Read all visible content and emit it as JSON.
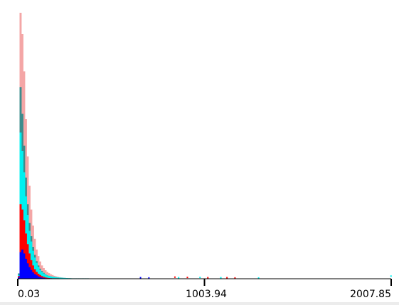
{
  "chart_data": {
    "type": "bar",
    "x_ticks": [
      "0.03",
      "1003.94",
      "2007.85"
    ],
    "xlim": [
      0.03,
      2007.85
    ],
    "ylim": [
      0,
      1
    ],
    "grid": false,
    "bin_count": 210,
    "colors": {
      "pink": "#f4a6a6",
      "teal": "#3d8c8c",
      "cyan": "#00f0f0",
      "red": "#ff0000",
      "blue": "#0000ff",
      "axis": "#000000"
    },
    "series": [
      {
        "color_key": "pink",
        "values": [
          0.02,
          1.0,
          0.92,
          0.78,
          0.6,
          0.46,
          0.35,
          0.26,
          0.2,
          0.15,
          0.11,
          0.085,
          0.065,
          0.05,
          0.04,
          0.032,
          0.026,
          0.021,
          0.017,
          0.014,
          0.011,
          0.009,
          0.0075,
          0.006,
          0.005,
          0.004,
          0.0033,
          0.0027,
          0.0022,
          0.0018,
          0.0015,
          0.0012,
          0.001,
          0.0008,
          0.0006,
          0.0005,
          0.0004,
          0.0003,
          0.0002,
          0.0001
        ]
      },
      {
        "color_key": "teal",
        "values": [
          0.02,
          0.72,
          0.62,
          0.5,
          0.38,
          0.28,
          0.21,
          0.16,
          0.12,
          0.09,
          0.066,
          0.05,
          0.038,
          0.029,
          0.022,
          0.017,
          0.013,
          0.01,
          0.008,
          0.006,
          0.005,
          0.004,
          0.003,
          0.0025,
          0.002,
          0.0016,
          0.0012,
          0.001,
          0.0008,
          0.0006
        ]
      },
      {
        "color_key": "cyan",
        "values": [
          0.015,
          0.55,
          0.48,
          0.4,
          0.31,
          0.24,
          0.18,
          0.14,
          0.105,
          0.08,
          0.06,
          0.045,
          0.034,
          0.026,
          0.02,
          0.016,
          0.013,
          0.011,
          0.009,
          0.008,
          0.007,
          0.006,
          0.005,
          0.0045,
          0.004,
          0.0035,
          0.003,
          0.0026,
          0.0022,
          0.0019,
          0.0016,
          0.0013,
          0.0011,
          0.0009,
          0.0008,
          0.0007,
          0.0006,
          0.0005,
          0.0004,
          0.0003
        ]
      },
      {
        "color_key": "red",
        "values": [
          0.01,
          0.28,
          0.26,
          0.22,
          0.17,
          0.13,
          0.095,
          0.07,
          0.05,
          0.036,
          0.026,
          0.019,
          0.014,
          0.01,
          0.007,
          0.005,
          0.0036,
          0.0026,
          0.0018,
          0.0012,
          0.0008,
          0.0005,
          0.0003
        ]
      },
      {
        "color_key": "blue",
        "values": [
          0.005,
          0.1,
          0.11,
          0.095,
          0.075,
          0.058,
          0.044,
          0.033,
          0.024,
          0.018,
          0.013,
          0.009,
          0.0065,
          0.0045,
          0.003,
          0.002,
          0.0013,
          0.0008,
          0.0005
        ]
      }
    ],
    "scatter_points": [
      {
        "x": 845.0,
        "y": 0.006,
        "color_key": "red"
      },
      {
        "x": 912.0,
        "y": 0.005,
        "color_key": "red"
      },
      {
        "x": 1022.0,
        "y": 0.004,
        "color_key": "red"
      },
      {
        "x": 1125.0,
        "y": 0.004,
        "color_key": "red"
      },
      {
        "x": 1168.0,
        "y": 0.003,
        "color_key": "red"
      },
      {
        "x": 865.0,
        "y": 0.004,
        "color_key": "cyan"
      },
      {
        "x": 980.0,
        "y": 0.005,
        "color_key": "cyan"
      },
      {
        "x": 1092.0,
        "y": 0.004,
        "color_key": "cyan"
      },
      {
        "x": 1295.0,
        "y": 0.003,
        "color_key": "cyan"
      },
      {
        "x": 2007.0,
        "y": 0.01,
        "color_key": "cyan"
      },
      {
        "x": 660.0,
        "y": 0.004,
        "color_key": "blue"
      },
      {
        "x": 705.0,
        "y": 0.003,
        "color_key": "blue"
      }
    ]
  }
}
